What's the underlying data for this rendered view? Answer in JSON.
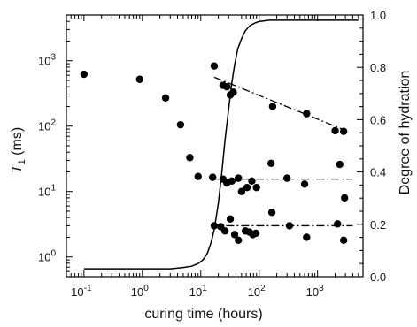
{
  "chart_data": {
    "type": "scatter",
    "title": "",
    "xlabel": "curing time (hours)",
    "ylabel_left": "T",
    "ylabel_left_sub": "1",
    "ylabel_left_unit": " (ms)",
    "ylabel_right": "Degree of hydration",
    "x_scale": "log",
    "y_left_scale": "log",
    "x_range": [
      0.05,
      6000
    ],
    "y_left_range": [
      0.5,
      5000
    ],
    "y_right_range": [
      0.0,
      1.0
    ],
    "x_ticks": [
      {
        "value": 0.1,
        "base": "10",
        "exp": "-1"
      },
      {
        "value": 1,
        "base": "10",
        "exp": "0"
      },
      {
        "value": 10,
        "base": "10",
        "exp": "1"
      },
      {
        "value": 100,
        "base": "10",
        "exp": "2"
      },
      {
        "value": 1000,
        "base": "10",
        "exp": "3"
      }
    ],
    "y_left_ticks": [
      {
        "value": 1,
        "base": "10",
        "exp": "0"
      },
      {
        "value": 10,
        "base": "10",
        "exp": "1"
      },
      {
        "value": 100,
        "base": "10",
        "exp": "2"
      },
      {
        "value": 1000,
        "base": "10",
        "exp": "3"
      }
    ],
    "y_right_ticks": [
      {
        "value": 0.0,
        "label": "0.0"
      },
      {
        "value": 0.2,
        "label": "0.2"
      },
      {
        "value": 0.4,
        "label": "0.4"
      },
      {
        "value": 0.6,
        "label": "0.6"
      },
      {
        "value": 0.8,
        "label": "0.8"
      },
      {
        "value": 1.0,
        "label": "1.0"
      }
    ],
    "points": [
      [
        0.1,
        620
      ],
      [
        0.9,
        520
      ],
      [
        2.5,
        270
      ],
      [
        4.5,
        105
      ],
      [
        6.5,
        33
      ],
      [
        9,
        17
      ],
      [
        17,
        830
      ],
      [
        24,
        420
      ],
      [
        28,
        400
      ],
      [
        32,
        300
      ],
      [
        36,
        330
      ],
      [
        170,
        200
      ],
      [
        650,
        155
      ],
      [
        2000,
        85
      ],
      [
        2800,
        83
      ],
      [
        16,
        16.5
      ],
      [
        24,
        15.5
      ],
      [
        28,
        13.5
      ],
      [
        34,
        14.5
      ],
      [
        44,
        16
      ],
      [
        50,
        10
      ],
      [
        62,
        11.5
      ],
      [
        75,
        14.5
      ],
      [
        90,
        11.5
      ],
      [
        160,
        27
      ],
      [
        300,
        16
      ],
      [
        600,
        13
      ],
      [
        2400,
        26
      ],
      [
        2900,
        8
      ],
      [
        17,
        3.0
      ],
      [
        22,
        2.9
      ],
      [
        26,
        2.5
      ],
      [
        32,
        3.8
      ],
      [
        38,
        2.2
      ],
      [
        44,
        1.8
      ],
      [
        58,
        2.5
      ],
      [
        68,
        2.4
      ],
      [
        78,
        2.2
      ],
      [
        88,
        2.3
      ],
      [
        165,
        4.8
      ],
      [
        330,
        3.0
      ],
      [
        650,
        2.0
      ],
      [
        2200,
        3.2
      ],
      [
        2800,
        1.8
      ]
    ],
    "fit_lines": [
      {
        "x": [
          17,
          3100
        ],
        "y": [
          560,
          85
        ]
      },
      {
        "x": [
          15,
          4000
        ],
        "y": [
          15.5,
          15.5
        ]
      },
      {
        "x": [
          15,
          4000
        ],
        "y": [
          3.0,
          3.0
        ]
      }
    ],
    "hydration_curve": {
      "x": [
        0.1,
        1,
        3,
        5,
        7,
        9,
        11,
        13,
        15,
        17,
        20,
        23,
        26,
        30,
        34,
        38,
        43,
        50,
        58,
        70,
        85,
        100,
        150,
        200,
        300,
        500,
        1000,
        5000
      ],
      "y": [
        0.03,
        0.03,
        0.03,
        0.035,
        0.04,
        0.05,
        0.065,
        0.09,
        0.13,
        0.18,
        0.28,
        0.4,
        0.52,
        0.64,
        0.74,
        0.81,
        0.87,
        0.91,
        0.94,
        0.96,
        0.97,
        0.975,
        0.98,
        0.98,
        0.98,
        0.98,
        0.98,
        0.98
      ]
    }
  }
}
